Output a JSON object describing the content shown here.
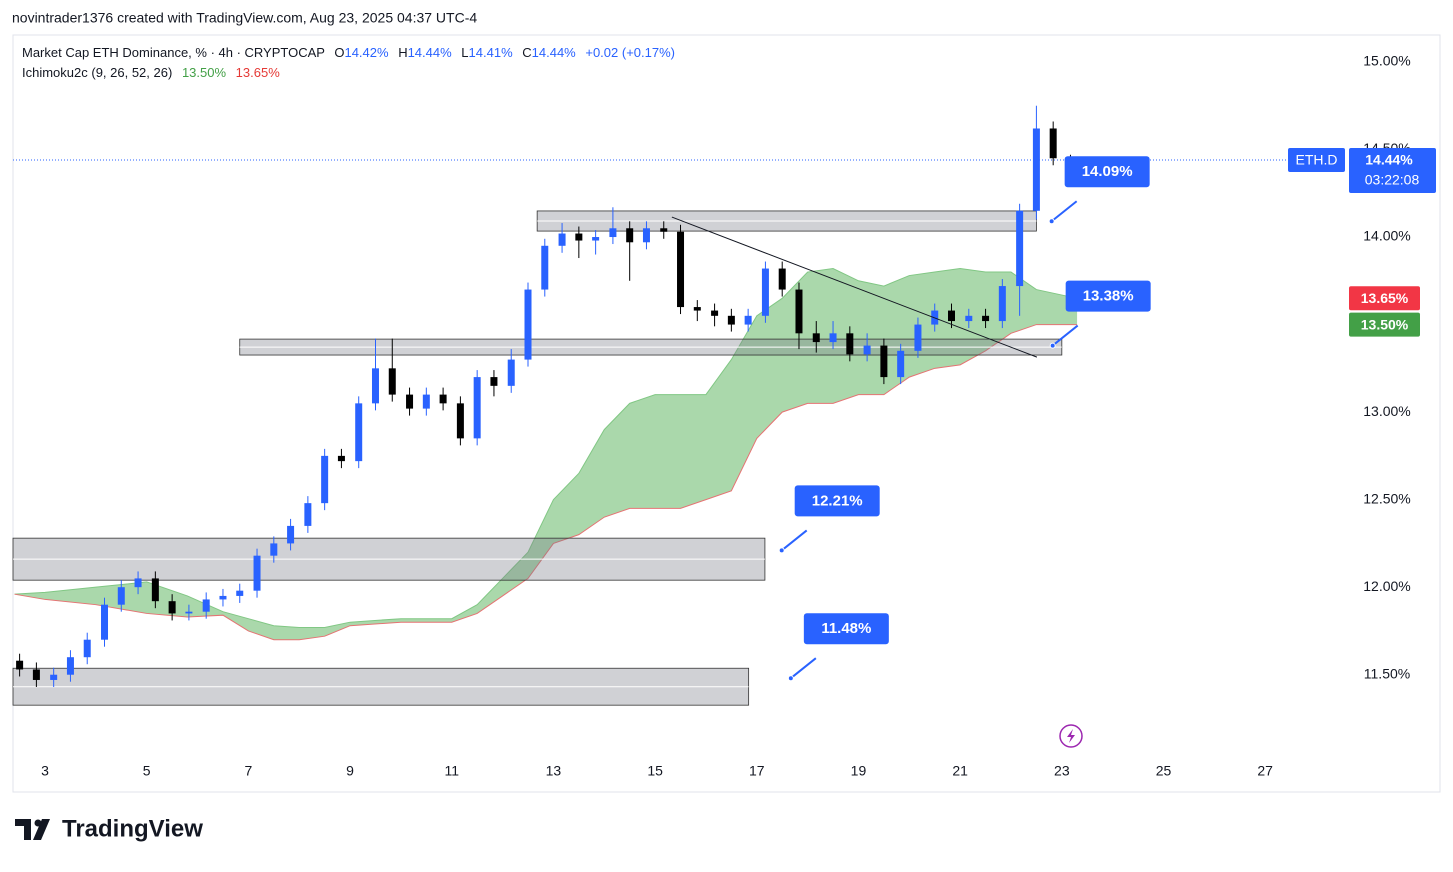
{
  "header": {
    "text": "novintrader1376 created with TradingView.com, Aug 23, 2025 04:37 UTC-4"
  },
  "chart_data": {
    "type": "candlestick",
    "title": "Market Cap ETH Dominance, % · 4h · CRYPTOCAP",
    "quote": [
      [
        "O",
        "14.42%"
      ],
      [
        "H",
        "14.44%"
      ],
      [
        "L",
        "14.41%"
      ],
      [
        "C",
        "14.44%"
      ]
    ],
    "change": "+0.02 (+0.17%)",
    "up_color": "#2962ff",
    "down_color": "#000000",
    "x": [
      2.5,
      2.83,
      3.17,
      3.5,
      3.83,
      4.17,
      4.5,
      4.83,
      5.17,
      5.5,
      5.83,
      6.17,
      6.5,
      6.83,
      7.17,
      7.5,
      7.83,
      8.17,
      8.5,
      8.83,
      9.17,
      9.5,
      9.83,
      10.17,
      10.5,
      10.83,
      11.17,
      11.5,
      11.83,
      12.17,
      12.5,
      12.83,
      13.17,
      13.5,
      13.83,
      14.17,
      14.5,
      14.83,
      15.17,
      15.5,
      15.83,
      16.17,
      16.5,
      16.83,
      17.17,
      17.5,
      17.83,
      18.17,
      18.5,
      18.83,
      19.17,
      19.5,
      19.83,
      20.17,
      20.5,
      20.83,
      21.17,
      21.5,
      21.83,
      22.17,
      22.5,
      22.83,
      23.17
    ],
    "open": [
      11.58,
      11.53,
      11.47,
      11.5,
      11.6,
      11.7,
      11.9,
      12.0,
      12.05,
      11.92,
      11.85,
      11.86,
      11.93,
      11.95,
      11.98,
      12.18,
      12.25,
      12.35,
      12.48,
      12.75,
      12.72,
      13.05,
      13.25,
      13.1,
      13.02,
      13.1,
      13.05,
      12.85,
      13.2,
      13.15,
      13.3,
      13.7,
      13.95,
      14.02,
      13.98,
      14.0,
      14.05,
      13.97,
      14.05,
      14.03,
      13.6,
      13.58,
      13.55,
      13.5,
      13.55,
      13.82,
      13.7,
      13.45,
      13.4,
      13.45,
      13.33,
      13.38,
      13.2,
      13.35,
      13.5,
      13.58,
      13.52,
      13.55,
      13.52,
      13.72,
      14.15,
      14.62,
      14.45
    ],
    "high": [
      11.62,
      11.57,
      11.54,
      11.64,
      11.74,
      11.94,
      12.04,
      12.09,
      12.09,
      11.96,
      11.9,
      11.97,
      11.99,
      12.02,
      12.22,
      12.29,
      12.39,
      12.52,
      12.79,
      12.79,
      13.09,
      13.42,
      13.42,
      13.14,
      13.14,
      13.14,
      13.09,
      13.24,
      13.24,
      13.36,
      13.74,
      13.99,
      14.08,
      14.06,
      14.04,
      14.17,
      14.09,
      14.09,
      14.09,
      14.07,
      13.64,
      13.62,
      13.59,
      13.59,
      13.86,
      13.86,
      13.74,
      13.52,
      13.52,
      13.49,
      13.45,
      13.42,
      13.39,
      13.54,
      13.62,
      13.62,
      13.59,
      13.59,
      13.76,
      14.19,
      14.75,
      14.66,
      14.47
    ],
    "low": [
      11.49,
      11.43,
      11.43,
      11.46,
      11.56,
      11.66,
      11.86,
      11.96,
      11.88,
      11.81,
      11.81,
      11.82,
      11.89,
      11.91,
      11.94,
      12.14,
      12.21,
      12.31,
      12.44,
      12.68,
      12.68,
      13.01,
      13.06,
      12.98,
      12.98,
      13.01,
      12.81,
      12.81,
      13.09,
      13.11,
      13.26,
      13.66,
      13.91,
      13.88,
      13.9,
      13.96,
      13.75,
      13.93,
      13.99,
      13.56,
      13.52,
      13.49,
      13.46,
      13.46,
      13.51,
      13.66,
      13.36,
      13.34,
      13.36,
      13.29,
      13.29,
      13.16,
      13.16,
      13.31,
      13.46,
      13.48,
      13.48,
      13.48,
      13.48,
      13.55,
      14.1,
      14.41,
      14.41
    ],
    "close": [
      11.53,
      11.47,
      11.5,
      11.6,
      11.7,
      11.9,
      12.0,
      12.05,
      11.92,
      11.85,
      11.86,
      11.93,
      11.95,
      11.98,
      12.18,
      12.25,
      12.35,
      12.48,
      12.75,
      12.72,
      13.05,
      13.25,
      13.1,
      13.02,
      13.1,
      13.05,
      12.85,
      13.2,
      13.15,
      13.3,
      13.7,
      13.95,
      14.02,
      13.98,
      14.0,
      14.05,
      13.97,
      14.05,
      14.03,
      13.6,
      13.58,
      13.55,
      13.5,
      13.55,
      13.82,
      13.7,
      13.45,
      13.4,
      13.45,
      13.33,
      13.38,
      13.2,
      13.35,
      13.5,
      13.58,
      13.52,
      13.55,
      13.52,
      13.72,
      14.15,
      14.62,
      14.45,
      14.44
    ],
    "indicator": {
      "name": "Ichimoku2c (9, 26, 52, 26)",
      "lead1": {
        "value": 13.5,
        "label": "13.50%"
      },
      "lead2": {
        "value": 13.65,
        "label": "13.65%"
      },
      "color": "#a5d6a7",
      "x": [
        2.4,
        3,
        4,
        5,
        5.8,
        6.5,
        7,
        7.5,
        8,
        8.5,
        9,
        10,
        11,
        11.5,
        12,
        12.5,
        13,
        13.5,
        14,
        14.5,
        15,
        15.5,
        16,
        16.5,
        17,
        17.5,
        18,
        18.5,
        19,
        19.5,
        20,
        20.5,
        21,
        21.5,
        22,
        22.5,
        23.3
      ],
      "upper": [
        11.96,
        11.97,
        12.0,
        12.03,
        11.95,
        11.86,
        11.82,
        11.78,
        11.77,
        11.77,
        11.8,
        11.82,
        11.82,
        11.9,
        12.05,
        12.2,
        12.5,
        12.65,
        12.9,
        13.05,
        13.1,
        13.1,
        13.1,
        13.3,
        13.55,
        13.65,
        13.8,
        13.82,
        13.75,
        13.72,
        13.78,
        13.8,
        13.82,
        13.8,
        13.8,
        13.7,
        13.65
      ],
      "lower": [
        11.96,
        11.93,
        11.9,
        11.85,
        11.83,
        11.84,
        11.75,
        11.7,
        11.7,
        11.72,
        11.78,
        11.8,
        11.8,
        11.85,
        11.95,
        12.05,
        12.25,
        12.3,
        12.4,
        12.45,
        12.45,
        12.45,
        12.5,
        12.55,
        12.85,
        13.0,
        13.05,
        13.05,
        13.1,
        13.1,
        13.2,
        13.25,
        13.27,
        13.35,
        13.45,
        13.5,
        13.5
      ]
    },
    "xlim": [
      2.37,
      28.57
    ],
    "xticks": [
      3,
      5,
      7,
      9,
      11,
      13,
      15,
      17,
      19,
      21,
      23,
      25,
      27
    ],
    "ylim": [
      11.03,
      15.154
    ],
    "yticks": [
      {
        "value": 11.5,
        "label": "11.50%"
      },
      {
        "value": 12,
        "label": "12.00%"
      },
      {
        "value": 12.5,
        "label": "12.50%"
      },
      {
        "value": 13,
        "label": "13.00%"
      },
      {
        "value": 13.5,
        "label": "13.50%"
      },
      {
        "value": 14,
        "label": "14.00%"
      },
      {
        "value": 14.5,
        "label": "14.50%"
      },
      {
        "value": 15,
        "label": "15.00%"
      }
    ],
    "grid": false,
    "symbol": "ETH.D",
    "last": {
      "value": 14.44,
      "label": "14.44%"
    },
    "countdown": "03:22:08",
    "zones": [
      {
        "x": [
          2.37,
          17.16
        ],
        "y": [
          12.04,
          12.28
        ]
      },
      {
        "x": [
          2.37,
          16.84
        ],
        "y": [
          11.326,
          11.537
        ]
      },
      {
        "x": [
          6.83,
          23.0
        ],
        "y": [
          13.326,
          13.417
        ]
      },
      {
        "x": [
          12.68,
          22.5
        ],
        "y": [
          14.034,
          14.149
        ]
      }
    ],
    "trendline": {
      "x": [
        15.33,
        22.51
      ],
      "y": [
        14.114,
        13.314
      ]
    },
    "annotations": [
      {
        "value": 14.09,
        "label": "14.09%",
        "x": 22.8
      },
      {
        "value": 13.38,
        "label": "13.38%",
        "x": 22.82
      },
      {
        "value": 12.21,
        "label": "12.21%",
        "x": 17.49
      },
      {
        "value": 11.48,
        "label": "11.48%",
        "x": 17.67
      }
    ]
  },
  "footer": {
    "logo": "TradingView"
  }
}
